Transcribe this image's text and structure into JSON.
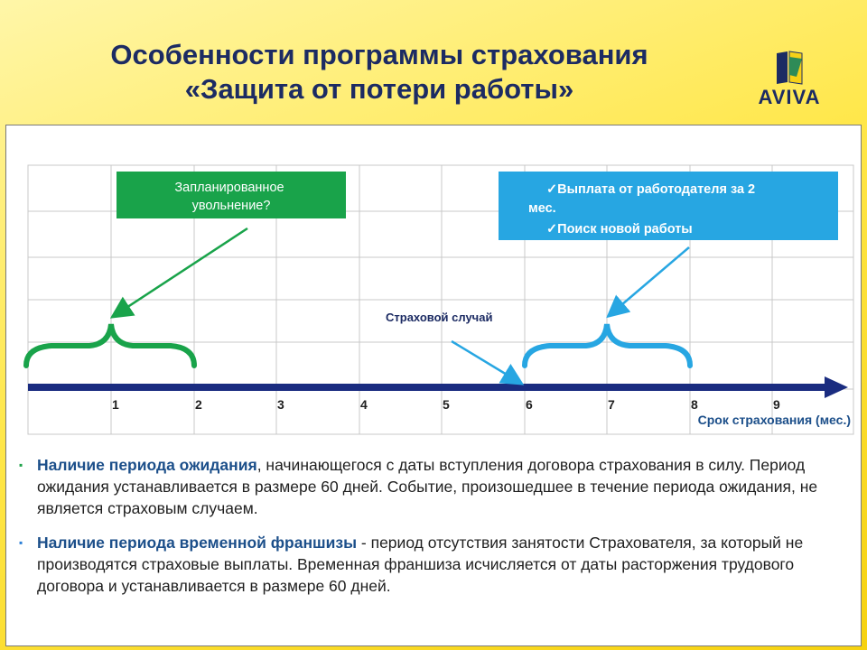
{
  "header": {
    "title_line1": "Особенности программы страхования",
    "title_line2": "«Защита от потери работы»",
    "logo_text": "AVIVA"
  },
  "diagram": {
    "callout_left": [
      "Запланированное",
      "увольнение?"
    ],
    "callout_right": [
      "✓Выплата от работодателя за 2",
      "мес.",
      "✓Поиск новой работы"
    ],
    "event_label": "Страховой случай",
    "axis_ticks": [
      "1",
      "2",
      "3",
      "4",
      "5",
      "6",
      "7",
      "8",
      "9"
    ],
    "axis_title": "Срок страхования (мес.)",
    "colors": {
      "green": "#19a34a",
      "cyan": "#27a6e2",
      "navy": "#1a2c80"
    }
  },
  "bullets": [
    {
      "highlight": "Наличие периода ожидания",
      "text": ", начинающегося с даты вступления договора страхования в силу. Период ожидания устанавливается в размере 60 дней. Событие, произошедшее в течение периода ожидания, не является страховым случаем."
    },
    {
      "highlight": "Наличие периода временной франшизы",
      "text": " - период отсутствия занятости Страхователя, за который не производятся страховые выплаты. Временная франшиза исчисляется от даты расторжения трудового договора и устанавливается в размере 60 дней."
    }
  ]
}
